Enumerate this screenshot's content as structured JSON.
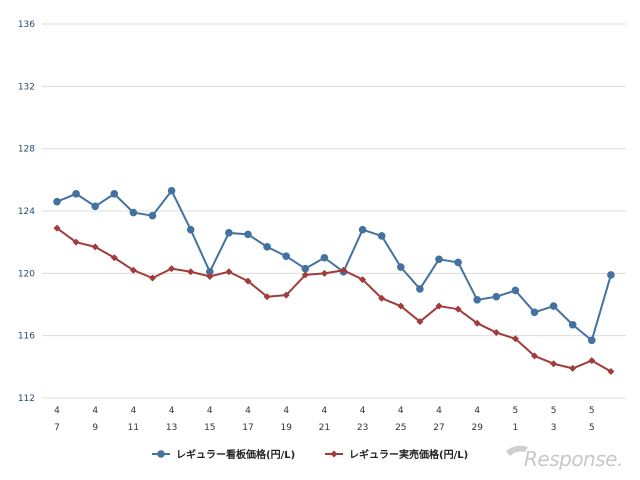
{
  "chart_data": {
    "type": "line",
    "categories": [
      [
        "4",
        "7"
      ],
      [
        "4",
        ""
      ],
      [
        "4",
        "9"
      ],
      [
        "4",
        ""
      ],
      [
        "4",
        "11"
      ],
      [
        "4",
        ""
      ],
      [
        "4",
        "13"
      ],
      [
        "4",
        ""
      ],
      [
        "4",
        "15"
      ],
      [
        "4",
        ""
      ],
      [
        "4",
        "17"
      ],
      [
        "4",
        ""
      ],
      [
        "4",
        "19"
      ],
      [
        "4",
        ""
      ],
      [
        "4",
        "21"
      ],
      [
        "4",
        ""
      ],
      [
        "4",
        "23"
      ],
      [
        "4",
        ""
      ],
      [
        "4",
        "25"
      ],
      [
        "4",
        ""
      ],
      [
        "4",
        "27"
      ],
      [
        "4",
        ""
      ],
      [
        "4",
        "29"
      ],
      [
        "4",
        ""
      ],
      [
        "5",
        "1"
      ],
      [
        "5",
        ""
      ],
      [
        "5",
        "3"
      ],
      [
        "5",
        ""
      ],
      [
        "5",
        "5"
      ],
      [
        "5",
        ""
      ]
    ],
    "x_tick_labels": [
      {
        "month": "4",
        "day": "7"
      },
      {
        "month": "4",
        "day": "9"
      },
      {
        "month": "4",
        "day": "11"
      },
      {
        "month": "4",
        "day": "13"
      },
      {
        "month": "4",
        "day": "15"
      },
      {
        "month": "4",
        "day": "17"
      },
      {
        "month": "4",
        "day": "19"
      },
      {
        "month": "4",
        "day": "21"
      },
      {
        "month": "4",
        "day": "23"
      },
      {
        "month": "4",
        "day": "25"
      },
      {
        "month": "4",
        "day": "27"
      },
      {
        "month": "4",
        "day": "29"
      },
      {
        "month": "5",
        "day": "1"
      },
      {
        "month": "5",
        "day": "3"
      },
      {
        "month": "5",
        "day": "5"
      }
    ],
    "y_ticks": [
      112,
      116,
      120,
      124,
      128,
      132,
      136
    ],
    "ylim": [
      112,
      136
    ],
    "grid": "horizontal",
    "legend_position": "bottom",
    "series": [
      {
        "name": "レギュラー看板価格(円/L)",
        "color": "#4472a0",
        "marker": "circle",
        "values": [
          124.6,
          125.1,
          124.3,
          125.1,
          123.9,
          123.7,
          125.3,
          122.8,
          120.1,
          122.6,
          122.5,
          121.7,
          121.1,
          120.3,
          121.0,
          120.1,
          122.8,
          122.4,
          120.4,
          119.0,
          120.9,
          120.7,
          118.3,
          118.5,
          118.9,
          117.5,
          117.9,
          116.7,
          115.7,
          119.9
        ]
      },
      {
        "name": "レギュラー実売価格(円/L)",
        "color": "#a03c3c",
        "marker": "diamond",
        "values": [
          122.9,
          122.0,
          121.7,
          121.0,
          120.2,
          119.7,
          120.3,
          120.1,
          119.8,
          120.1,
          119.5,
          118.5,
          118.6,
          119.9,
          120.0,
          120.2,
          119.6,
          118.4,
          117.9,
          116.9,
          117.9,
          117.7,
          116.8,
          116.2,
          115.8,
          114.7,
          114.2,
          113.9,
          114.4,
          113.7
        ]
      }
    ]
  },
  "watermark": {
    "text": "Response."
  }
}
